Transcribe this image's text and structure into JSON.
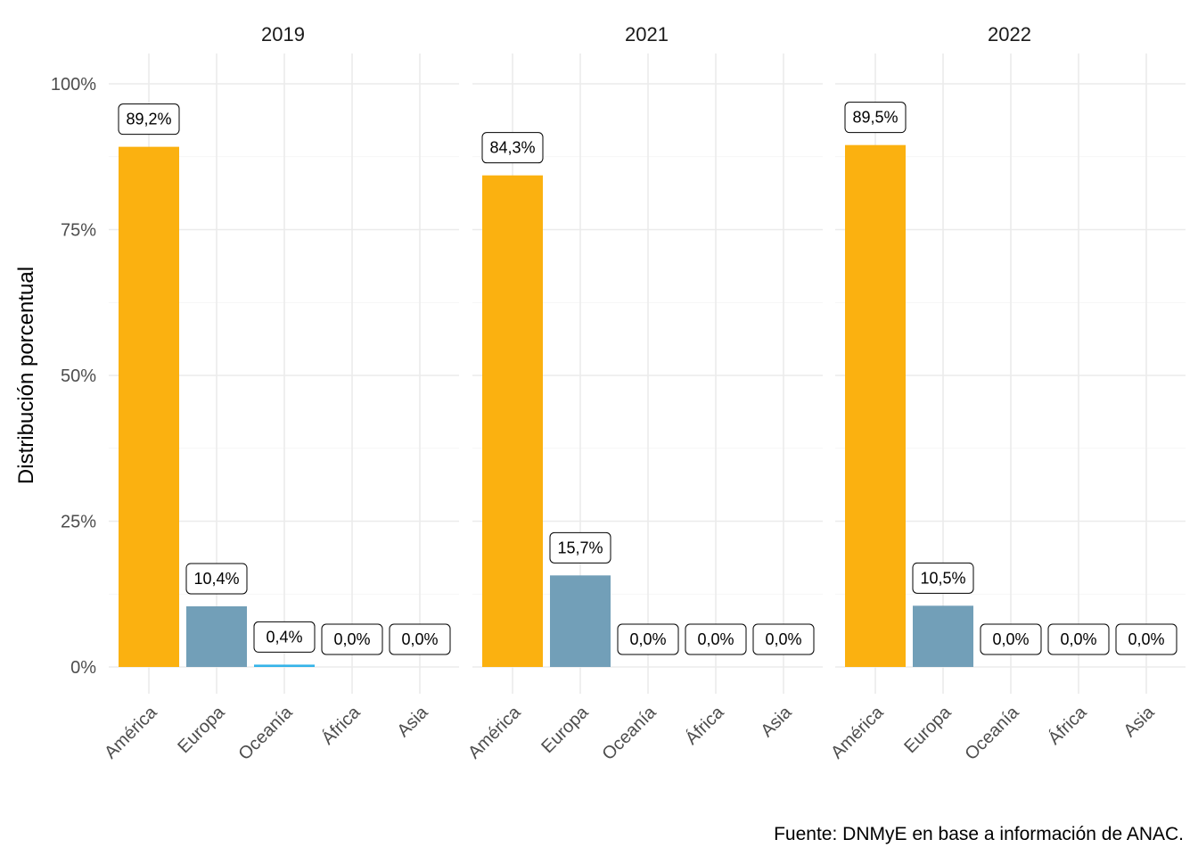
{
  "chart_data": {
    "type": "bar",
    "facet_by": "year",
    "categories": [
      "América",
      "Europa",
      "Oceanía",
      "África",
      "Asia"
    ],
    "panels": [
      {
        "title": "2019",
        "values": [
          89.2,
          10.4,
          0.4,
          0.0,
          0.0
        ],
        "labels": [
          "89,2%",
          "10,4%",
          "0,4%",
          "0,0%",
          "0,0%"
        ]
      },
      {
        "title": "2021",
        "values": [
          84.3,
          15.7,
          0.0,
          0.0,
          0.0
        ],
        "labels": [
          "84,3%",
          "15,7%",
          "0,0%",
          "0,0%",
          "0,0%"
        ]
      },
      {
        "title": "2022",
        "values": [
          89.5,
          10.5,
          0.0,
          0.0,
          0.0
        ],
        "labels": [
          "89,5%",
          "10,5%",
          "0,0%",
          "0,0%",
          "0,0%"
        ]
      }
    ],
    "category_colors": [
      "#fbb110",
      "#729fb8",
      "#35b3e8",
      "#35b3e8",
      "#35b3e8"
    ],
    "ylabel": "Distribución porcentual",
    "xlabel": "",
    "ylim": [
      0,
      100
    ],
    "yticks": [
      0,
      25,
      50,
      75,
      100
    ],
    "ytick_labels": [
      "0%",
      "25%",
      "50%",
      "75%",
      "100%"
    ],
    "grid": true,
    "legend": "none",
    "caption": "Fuente: DNMyE en base a información de ANAC."
  }
}
